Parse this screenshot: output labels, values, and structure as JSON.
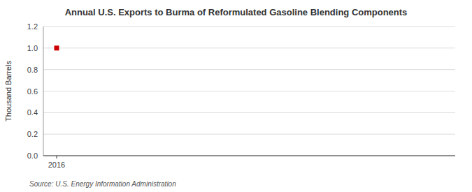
{
  "chart_data": {
    "type": "scatter",
    "title": "Annual U.S. Exports to Burma of Reformulated Gasoline Blending Components",
    "y_label": "Thousand Barrels",
    "source": "Source: U.S. Energy Information Administration",
    "x": [
      2016
    ],
    "values": [
      1.0
    ],
    "color": "#cc0000",
    "marker": "square",
    "xlim": [
      2015.7,
      2025.0
    ],
    "ylim": [
      0.0,
      1.2
    ],
    "xticks": [
      2016
    ],
    "yticks": [
      {
        "value": 0.0,
        "label": "0.0"
      },
      0.2,
      0.4,
      0.6,
      0.8,
      {
        "value": 1.0,
        "label": "1.0"
      },
      1.2
    ],
    "grid": true
  }
}
